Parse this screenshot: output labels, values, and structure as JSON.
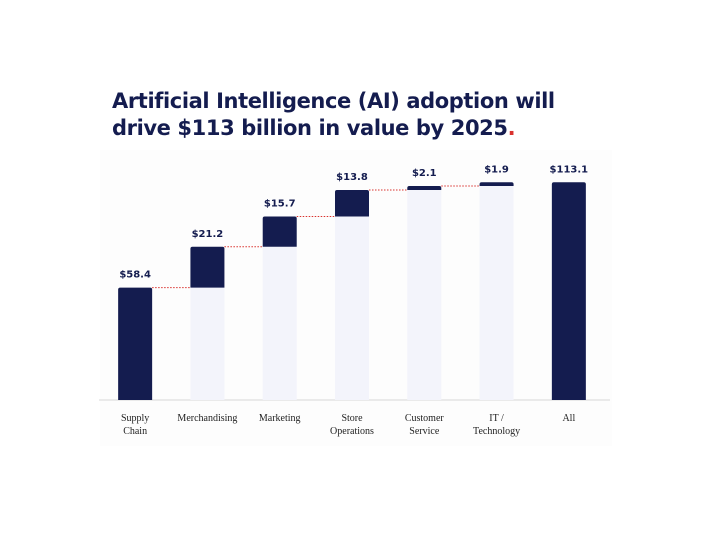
{
  "chart_data": {
    "type": "waterfall",
    "title": "Artificial Intelligence (AI) adoption will drive $113 billion in value by 2025",
    "title_punctuation": ".",
    "categories": [
      "Supply\nChain",
      "Merchandising",
      "Marketing",
      "Store\nOperations",
      "Customer\nService",
      "IT /\nTechnology",
      "All"
    ],
    "values": [
      58.4,
      21.2,
      15.7,
      13.8,
      2.1,
      1.9,
      113.1
    ],
    "value_labels": [
      "$58.4",
      "$21.2",
      "$15.7",
      "$13.8",
      "$2.1",
      "$1.9",
      "$113.1"
    ],
    "is_total": [
      false,
      false,
      false,
      false,
      false,
      false,
      true
    ],
    "color": "#141c4f",
    "base_color": "#f3f4fb",
    "connector_color": "#d9322e",
    "accent_color": "#d9322e",
    "ylim": [
      0,
      120
    ]
  }
}
